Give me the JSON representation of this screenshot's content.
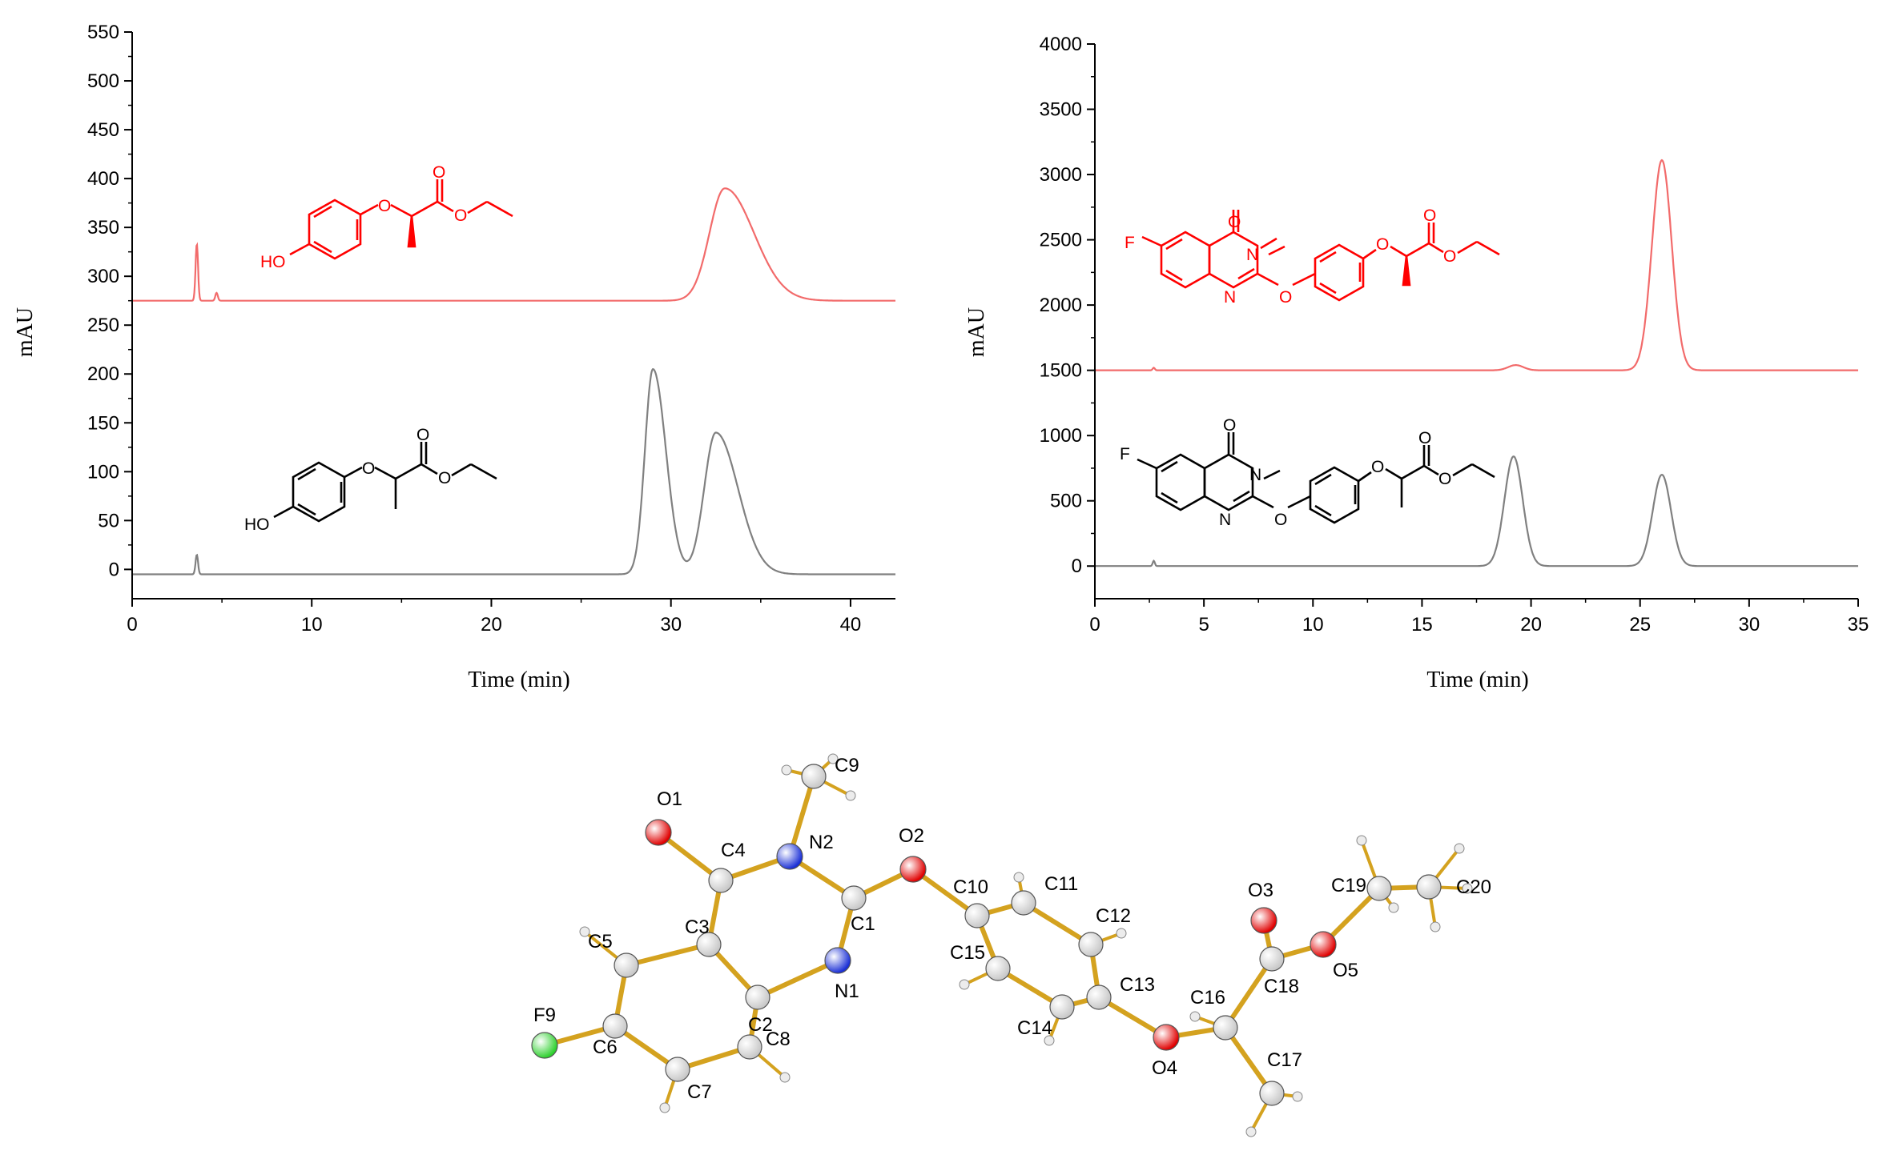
{
  "chart_data": [
    {
      "type": "line",
      "xlabel": "Time (min)",
      "ylabel": "mAU",
      "xlim": [
        0,
        42.5
      ],
      "ylim": [
        -30,
        550
      ],
      "xticks": [
        0,
        10,
        20,
        30,
        40
      ],
      "yticks": [
        0,
        50,
        100,
        150,
        200,
        250,
        300,
        350,
        400,
        450,
        500,
        550
      ],
      "series": [
        {
          "color": "#f26b6b",
          "baseline": 275,
          "peaks": [
            {
              "time": 3.6,
              "height": 58
            },
            {
              "time": 4.7,
              "height": 8
            },
            {
              "time": 33.0,
              "height": 115
            }
          ]
        },
        {
          "color": "#808080",
          "baseline": -5,
          "peaks": [
            {
              "time": 3.6,
              "height": 20
            },
            {
              "time": 29.0,
              "height": 210
            },
            {
              "time": 32.5,
              "height": 145
            }
          ]
        }
      ],
      "structures": [
        {
          "color": "#ff0000",
          "labels": [
            "HO",
            "O",
            "O",
            "O"
          ]
        },
        {
          "color": "#000000",
          "labels": [
            "HO",
            "O",
            "O",
            "O"
          ]
        }
      ]
    },
    {
      "type": "line",
      "xlabel": "Time (min)",
      "ylabel": "mAU",
      "xlim": [
        0,
        35
      ],
      "ylim": [
        -250,
        4000
      ],
      "xticks": [
        0,
        5,
        10,
        15,
        20,
        25,
        30,
        35
      ],
      "yticks": [
        0,
        500,
        1000,
        1500,
        2000,
        2500,
        3000,
        3500,
        4000
      ],
      "series": [
        {
          "color": "#f26b6b",
          "baseline": 1500,
          "peaks": [
            {
              "time": 2.7,
              "height": 20
            },
            {
              "time": 19.3,
              "height": 40
            },
            {
              "time": 26.0,
              "height": 1610
            }
          ]
        },
        {
          "color": "#808080",
          "baseline": 0,
          "peaks": [
            {
              "time": 2.7,
              "height": 40
            },
            {
              "time": 19.2,
              "height": 840
            },
            {
              "time": 26.0,
              "height": 700
            }
          ]
        }
      ],
      "structures": [
        {
          "color": "#ff0000",
          "labels": [
            "F",
            "O",
            "N",
            "N",
            "O",
            "O",
            "O",
            "O"
          ]
        },
        {
          "color": "#000000",
          "labels": [
            "F",
            "O",
            "N",
            "N",
            "O",
            "O",
            "O",
            "O"
          ]
        }
      ]
    }
  ],
  "crystal_structure": {
    "colors": {
      "bond": "#d4a21f",
      "carbon": "#c8c8c8",
      "oxygen": "#e00000",
      "nitrogen": "#1a2fd6",
      "fluorine": "#2ed02e",
      "hydrogen": "#ececec"
    },
    "atoms": [
      "O1",
      "C4",
      "N2",
      "C9",
      "O2",
      "C1",
      "N1",
      "C3",
      "C5",
      "C2",
      "C8",
      "C6",
      "F9",
      "C7",
      "C10",
      "C11",
      "C12",
      "C15",
      "C13",
      "C14",
      "O4",
      "C16",
      "C17",
      "C18",
      "O3",
      "O5",
      "C19",
      "C20"
    ]
  }
}
